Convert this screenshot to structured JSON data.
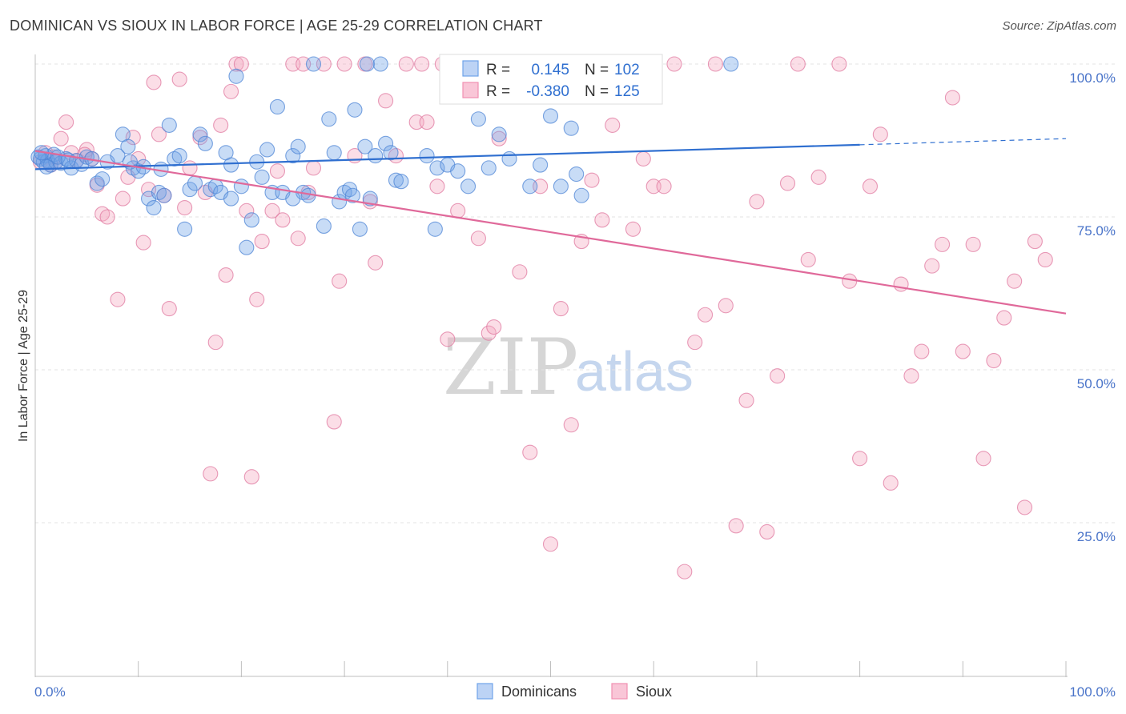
{
  "header": {
    "title": "DOMINICAN VS SIOUX IN LABOR FORCE | AGE 25-29 CORRELATION CHART",
    "source": "Source: ZipAtlas.com"
  },
  "watermark": {
    "zip": "ZIP",
    "atlas": "atlas"
  },
  "legend_box": {
    "rows": [
      {
        "r_label": "R =",
        "r_value": "0.145",
        "n_label": "N =",
        "n_value": "102",
        "color": "#6fa3e8"
      },
      {
        "r_label": "R =",
        "r_value": "-0.380",
        "n_label": "N =",
        "n_value": "125",
        "color": "#f08fb0"
      }
    ]
  },
  "bottom_legend": {
    "items": [
      {
        "label": "Dominicans"
      },
      {
        "label": "Sioux"
      }
    ]
  },
  "chart_data": {
    "type": "scatter",
    "title": "DOMINICAN VS SIOUX IN LABOR FORCE | AGE 25-29 CORRELATION CHART",
    "xlabel": "",
    "ylabel": "In Labor Force | Age 25-29",
    "xlim": [
      0,
      100
    ],
    "ylim": [
      0,
      100
    ],
    "x_tick_labels": [
      "0.0%",
      "100.0%"
    ],
    "y_tick_labels": [
      "100.0%",
      "75.0%",
      "50.0%",
      "25.0%"
    ],
    "y_ticks": [
      100,
      75,
      50,
      25
    ],
    "grid": true,
    "legend": "bottom-center",
    "series": [
      {
        "name": "Dominicans",
        "color": "#6fa3e8",
        "stroke": "#4f86d6",
        "trend": {
          "x0": 0,
          "y0": 82.8,
          "x1": 80,
          "y1": 86.8,
          "dashed_to_x": 100,
          "dashed_to_y": 87.8
        },
        "points": [
          [
            0.5,
            84.5
          ],
          [
            0.8,
            84
          ],
          [
            1,
            85
          ],
          [
            1.2,
            84.2
          ],
          [
            1.5,
            83.5
          ],
          [
            1.8,
            85.2
          ],
          [
            2,
            84
          ],
          [
            2.5,
            83.8
          ],
          [
            3,
            84.5
          ],
          [
            3.5,
            83
          ],
          [
            4,
            84.2
          ],
          [
            4.5,
            83.6
          ],
          [
            5,
            84.8
          ],
          [
            5.5,
            84.5
          ],
          [
            6,
            80.5
          ],
          [
            6.5,
            81.2
          ],
          [
            7,
            84
          ],
          [
            8,
            85
          ],
          [
            8.5,
            88.5
          ],
          [
            9,
            86.5
          ],
          [
            9.5,
            83
          ],
          [
            10,
            82.5
          ],
          [
            10.5,
            83.2
          ],
          [
            11,
            78
          ],
          [
            11.5,
            76.5
          ],
          [
            12,
            79
          ],
          [
            12.5,
            78.5
          ],
          [
            13,
            90
          ],
          [
            13.5,
            84.5
          ],
          [
            14,
            85
          ],
          [
            14.5,
            73
          ],
          [
            15,
            79.5
          ],
          [
            15.5,
            80.5
          ],
          [
            16,
            88.5
          ],
          [
            16.5,
            87
          ],
          [
            17,
            79.5
          ],
          [
            17.5,
            80
          ],
          [
            18,
            79
          ],
          [
            18.5,
            85.5
          ],
          [
            19,
            78
          ],
          [
            19.5,
            98
          ],
          [
            20,
            80
          ],
          [
            20.5,
            70
          ],
          [
            21,
            74.5
          ],
          [
            21.5,
            84
          ],
          [
            22,
            81.5
          ],
          [
            22.5,
            86
          ],
          [
            23,
            79
          ],
          [
            23.5,
            93
          ],
          [
            24,
            79
          ],
          [
            25,
            85
          ],
          [
            25.5,
            86.5
          ],
          [
            26,
            79
          ],
          [
            26.5,
            78.5
          ],
          [
            27,
            100
          ],
          [
            28,
            73.5
          ],
          [
            28.5,
            91
          ],
          [
            29,
            85.5
          ],
          [
            29.5,
            77.5
          ],
          [
            30,
            79
          ],
          [
            30.5,
            79.5
          ],
          [
            31,
            92.5
          ],
          [
            31.5,
            73
          ],
          [
            32,
            86.5
          ],
          [
            32.5,
            78
          ],
          [
            33,
            85
          ],
          [
            33.5,
            100
          ],
          [
            34,
            87
          ],
          [
            34.5,
            85.5
          ],
          [
            35,
            81
          ],
          [
            35.5,
            80.8
          ],
          [
            38,
            85
          ],
          [
            39,
            83
          ],
          [
            40,
            83.5
          ],
          [
            41,
            82.5
          ],
          [
            42,
            80
          ],
          [
            43,
            91
          ],
          [
            44,
            83
          ],
          [
            45,
            88.5
          ],
          [
            46,
            84.5
          ],
          [
            47,
            100
          ],
          [
            48,
            80
          ],
          [
            49,
            83.5
          ],
          [
            50,
            91.5
          ],
          [
            51,
            80
          ],
          [
            52,
            89.5
          ],
          [
            52.5,
            82
          ],
          [
            53,
            78.5
          ],
          [
            38.8,
            73
          ],
          [
            0.3,
            84.8
          ],
          [
            0.6,
            85.5
          ],
          [
            1.1,
            83.2
          ],
          [
            2.2,
            84.8
          ],
          [
            3.2,
            84.3
          ],
          [
            9.2,
            84
          ],
          [
            12.2,
            82.8
          ],
          [
            19,
            83.5
          ],
          [
            25,
            78
          ],
          [
            30.8,
            78.5
          ],
          [
            32.2,
            100
          ],
          [
            67.5,
            100
          ]
        ]
      },
      {
        "name": "Sioux",
        "color": "#f4a7c1",
        "stroke": "#e07aa0",
        "trend": {
          "x0": 0,
          "y0": 85.8,
          "x1": 100,
          "y1": 59.2
        },
        "points": [
          [
            0.5,
            84
          ],
          [
            1,
            85.5
          ],
          [
            1.5,
            83.5
          ],
          [
            2,
            84
          ],
          [
            2.5,
            87.8
          ],
          [
            3,
            90.5
          ],
          [
            3.5,
            85.5
          ],
          [
            4,
            84.2
          ],
          [
            5,
            86
          ],
          [
            5.5,
            84.5
          ],
          [
            6,
            80.2
          ],
          [
            6.5,
            75.5
          ],
          [
            7,
            75
          ],
          [
            8,
            61.5
          ],
          [
            8.5,
            78
          ],
          [
            9,
            81.5
          ],
          [
            9.5,
            88
          ],
          [
            10,
            84.5
          ],
          [
            10.5,
            70.8
          ],
          [
            11,
            79.5
          ],
          [
            11.5,
            97
          ],
          [
            12,
            88.5
          ],
          [
            12.5,
            78.5
          ],
          [
            13,
            60
          ],
          [
            14,
            97.5
          ],
          [
            14.5,
            76.5
          ],
          [
            15,
            83
          ],
          [
            16,
            88
          ],
          [
            16.5,
            79
          ],
          [
            17,
            33
          ],
          [
            17.5,
            54.5
          ],
          [
            18,
            90
          ],
          [
            18.5,
            65.5
          ],
          [
            19,
            95.5
          ],
          [
            19.5,
            100
          ],
          [
            20,
            100
          ],
          [
            20.5,
            76
          ],
          [
            21,
            32.5
          ],
          [
            21.5,
            61.5
          ],
          [
            22,
            71
          ],
          [
            23,
            76
          ],
          [
            23.5,
            82.5
          ],
          [
            24,
            74.5
          ],
          [
            25,
            100
          ],
          [
            25.5,
            71.5
          ],
          [
            26,
            100
          ],
          [
            26.5,
            79
          ],
          [
            27,
            83
          ],
          [
            28,
            100
          ],
          [
            29,
            41.5
          ],
          [
            29.5,
            64.5
          ],
          [
            30,
            100
          ],
          [
            31,
            85
          ],
          [
            32,
            100
          ],
          [
            32.5,
            77.5
          ],
          [
            33,
            67.5
          ],
          [
            34,
            94
          ],
          [
            35,
            85
          ],
          [
            36,
            100
          ],
          [
            37,
            90.5
          ],
          [
            38,
            90.5
          ],
          [
            39,
            80
          ],
          [
            40,
            55
          ],
          [
            41,
            76
          ],
          [
            42,
            100
          ],
          [
            43,
            71.5
          ],
          [
            44,
            56
          ],
          [
            44.5,
            57
          ],
          [
            45,
            87.8
          ],
          [
            46,
            100
          ],
          [
            47,
            66
          ],
          [
            48,
            36.5
          ],
          [
            49,
            80
          ],
          [
            50,
            21.5
          ],
          [
            51,
            60
          ],
          [
            52,
            41
          ],
          [
            53,
            71
          ],
          [
            54,
            81
          ],
          [
            55,
            74.5
          ],
          [
            56,
            90
          ],
          [
            57,
            100
          ],
          [
            58,
            73
          ],
          [
            59,
            84.5
          ],
          [
            60,
            80
          ],
          [
            61,
            80
          ],
          [
            62,
            100
          ],
          [
            63,
            17
          ],
          [
            64,
            54.5
          ],
          [
            65,
            59
          ],
          [
            66,
            100
          ],
          [
            67,
            60.5
          ],
          [
            68,
            24.5
          ],
          [
            69,
            45
          ],
          [
            70,
            77.5
          ],
          [
            71,
            23.5
          ],
          [
            72,
            49
          ],
          [
            73,
            80.5
          ],
          [
            74,
            100
          ],
          [
            75,
            68
          ],
          [
            76,
            81.5
          ],
          [
            78,
            100
          ],
          [
            79,
            64.5
          ],
          [
            80,
            35.5
          ],
          [
            81,
            80
          ],
          [
            82,
            88.5
          ],
          [
            83,
            31.5
          ],
          [
            84,
            64
          ],
          [
            85,
            49
          ],
          [
            86,
            53
          ],
          [
            87,
            67
          ],
          [
            88,
            70.5
          ],
          [
            89,
            94.5
          ],
          [
            90,
            53
          ],
          [
            91,
            70.5
          ],
          [
            92,
            35.5
          ],
          [
            93,
            51.5
          ],
          [
            94,
            58.5
          ],
          [
            95,
            64.5
          ],
          [
            96,
            27.5
          ],
          [
            97,
            71
          ],
          [
            98,
            68
          ],
          [
            1.8,
            84.8
          ],
          [
            4.8,
            85.2
          ],
          [
            37.5,
            100
          ],
          [
            39.5,
            100
          ]
        ]
      }
    ]
  }
}
